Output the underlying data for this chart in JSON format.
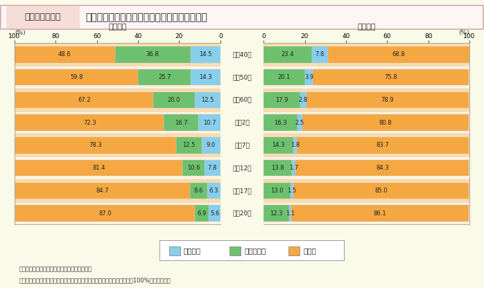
{
  "title_box": "第１－２－３図",
  "title_main": "就業者の従業上の地位別構成比の推移（性別）",
  "years": [
    "昭和40年",
    "昭和50年",
    "昭和60年",
    "平成2年",
    "平成7年",
    "平成12年",
    "平成17年",
    "平成20年"
  ],
  "female": {
    "jieigyosha": [
      14.5,
      14.3,
      12.5,
      10.7,
      9.0,
      7.8,
      6.3,
      5.6
    ],
    "kazoku": [
      36.8,
      25.7,
      20.0,
      16.7,
      12.5,
      10.6,
      8.6,
      6.9
    ],
    "koyosha": [
      48.6,
      59.8,
      67.2,
      72.3,
      78.3,
      81.4,
      84.7,
      87.0
    ]
  },
  "male": {
    "jieigyosha": [
      7.8,
      3.9,
      2.8,
      2.5,
      1.8,
      1.7,
      1.5,
      1.1
    ],
    "kazoku": [
      23.4,
      20.1,
      17.9,
      16.3,
      14.3,
      13.8,
      13.0,
      12.3
    ],
    "koyosha": [
      68.8,
      75.8,
      78.9,
      80.8,
      83.7,
      84.3,
      85.0,
      86.1
    ]
  },
  "color_koyosha": "#F5A742",
  "color_kazoku": "#6DC06D",
  "color_jieigyosha": "#87CEEB",
  "color_bg": "#FAFAE8",
  "color_row1": "#FDDCAA",
  "color_row2": "#FFF3E0",
  "legend_labels": [
    "自営業者",
    "家族従業者",
    "雇用者"
  ],
  "note1": "（備考）１．総務省「労働力調査」より作成。",
  "note2": "　　　　２．他に「従業上の地位不詳」のデータがあるため，合計しても100%にならない。",
  "xlabel_female": "〈女性〉",
  "xlabel_male": "〈男性〉"
}
